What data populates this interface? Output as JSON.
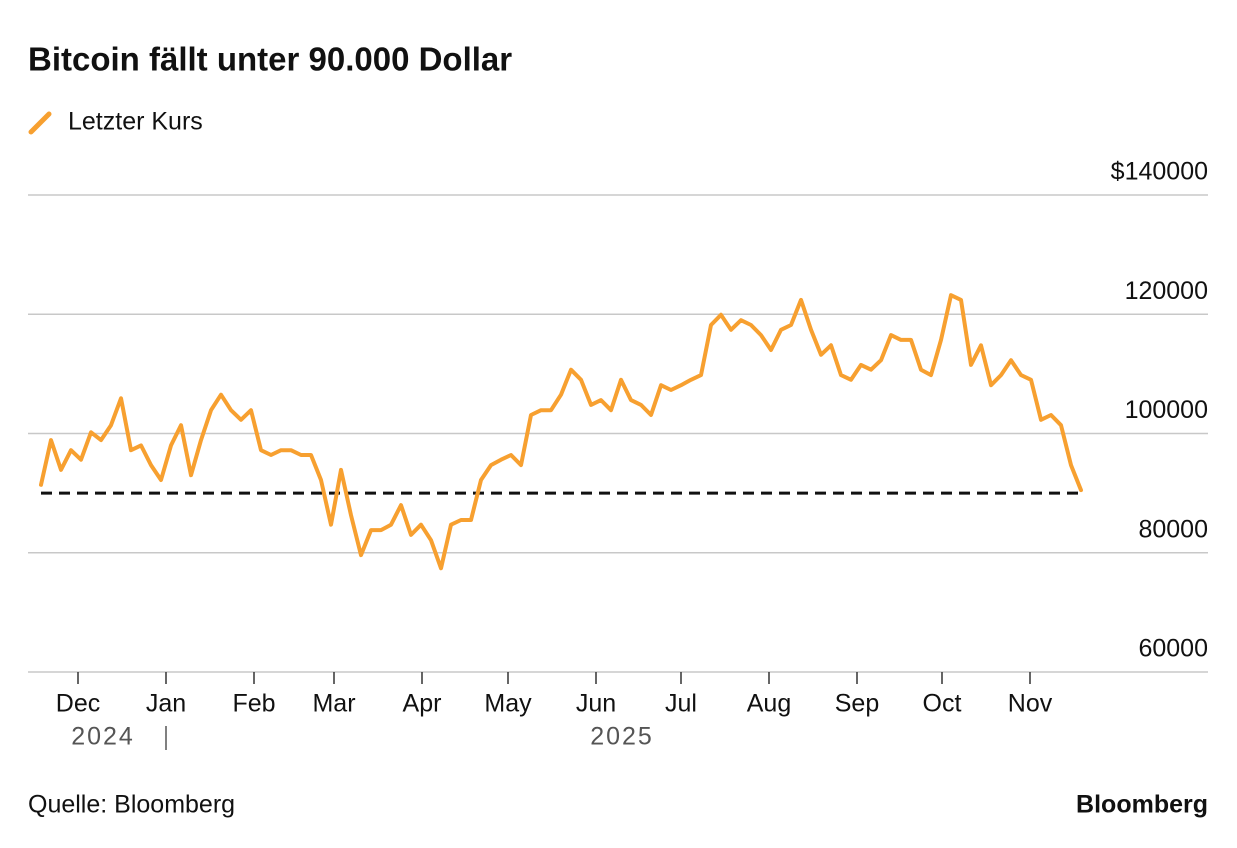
{
  "chart_data": {
    "type": "line",
    "title": "Bitcoin fällt unter 90.000 Dollar",
    "source": "Quelle: Bloomberg",
    "brand": "Bloomberg",
    "series": [
      {
        "name": "Letzter Kurs",
        "color": "#f7a030",
        "values": [
          91400,
          98900,
          93900,
          97200,
          95600,
          100200,
          98900,
          101400,
          105900,
          97200,
          98000,
          94700,
          92200,
          98000,
          101400,
          93000,
          98900,
          103900,
          106500,
          103900,
          102300,
          103900,
          97200,
          96400,
          97200,
          97200,
          96400,
          96400,
          92200,
          84700,
          93900,
          86300,
          79600,
          83800,
          83800,
          84700,
          88000,
          83000,
          84700,
          82100,
          77400,
          84700,
          85500,
          85500,
          92200,
          94700,
          95600,
          96400,
          94700,
          103100,
          103900,
          103900,
          106500,
          110700,
          109000,
          104800,
          105600,
          103900,
          109000,
          105600,
          104800,
          103100,
          108100,
          107300,
          108100,
          109000,
          109800,
          118200,
          119900,
          117400,
          119000,
          118200,
          116500,
          114000,
          117400,
          118200,
          122400,
          117400,
          113200,
          114800,
          109800,
          109000,
          111500,
          110700,
          112300,
          116500,
          115700,
          115700,
          110700,
          109800,
          115700,
          123200,
          122400,
          111500,
          114800,
          108100,
          109800,
          112300,
          109800,
          109000,
          102300,
          103100,
          101400,
          94700,
          90500
        ]
      }
    ],
    "reference_line": 90000,
    "xlim": [
      -1.3,
      116.7
    ],
    "xticks": [
      {
        "value": 3.7,
        "label": "Dec"
      },
      {
        "value": 12.5,
        "label": "Jan"
      },
      {
        "value": 21.3,
        "label": "Feb"
      },
      {
        "value": 29.3,
        "label": "Mar"
      },
      {
        "value": 38.1,
        "label": "Apr"
      },
      {
        "value": 46.7,
        "label": "May"
      },
      {
        "value": 55.5,
        "label": "Jun"
      },
      {
        "value": 64,
        "label": "Jul"
      },
      {
        "value": 72.8,
        "label": "Aug"
      },
      {
        "value": 81.6,
        "label": "Sep"
      },
      {
        "value": 90.1,
        "label": "Oct"
      },
      {
        "value": 98.9,
        "label": "Nov"
      }
    ],
    "year_ticks": [
      {
        "value": 6.2,
        "label": "2024"
      },
      {
        "value": 58.1,
        "label": "2025"
      }
    ],
    "ylim": [
      60000,
      140000
    ],
    "yticks": [
      60000,
      80000,
      100000,
      120000,
      {
        "value": 140000,
        "label": "$140000"
      }
    ],
    "grid": true
  }
}
